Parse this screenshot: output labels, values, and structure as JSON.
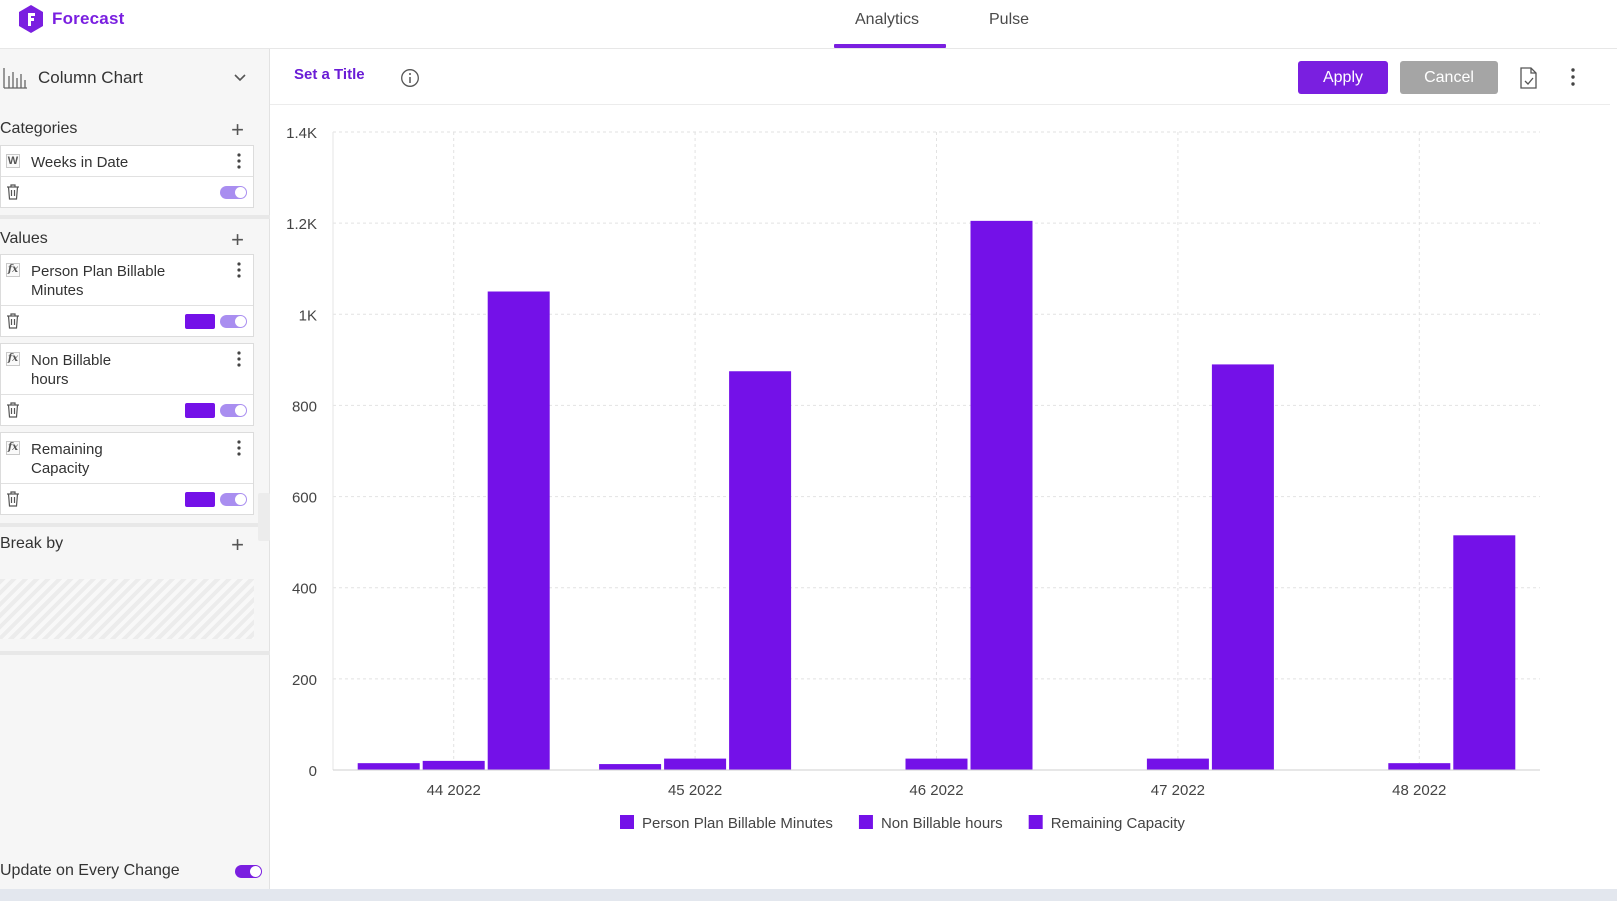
{
  "brand": {
    "name": "Forecast",
    "color": "#7a1fe0",
    "logo_icon": "forecast-logo-icon"
  },
  "nav": {
    "tabs": [
      "Analytics",
      "Pulse"
    ],
    "active": "Analytics"
  },
  "sidebar": {
    "chart_type": "Column Chart",
    "categories": {
      "title": "Categories",
      "items": [
        {
          "tag": "W",
          "label": "Weeks in Date"
        }
      ]
    },
    "values": {
      "title": "Values",
      "items": [
        {
          "tag": "fx",
          "label": "Person Plan Billable Minutes",
          "color": "#7411e8"
        },
        {
          "tag": "fx",
          "label": "Non Billable hours",
          "color": "#7411e8"
        },
        {
          "tag": "fx",
          "label": "Remaining Capacity",
          "color": "#7411e8"
        }
      ]
    },
    "break_by": {
      "title": "Break by"
    },
    "update_label": "Update on Every Change"
  },
  "toolbar": {
    "set_title": "Set a Title",
    "apply": "Apply",
    "cancel": "Cancel"
  },
  "chart_data": {
    "type": "bar",
    "categories": [
      "44 2022",
      "45 2022",
      "46 2022",
      "47 2022",
      "48 2022"
    ],
    "series": [
      {
        "name": "Person Plan Billable Minutes",
        "color": "#7411e8",
        "values": [
          15,
          13,
          0,
          0,
          0
        ]
      },
      {
        "name": "Non Billable hours",
        "color": "#7411e8",
        "values": [
          20,
          25,
          25,
          25,
          15
        ]
      },
      {
        "name": "Remaining Capacity",
        "color": "#7411e8",
        "values": [
          1050,
          875,
          1205,
          890,
          515
        ]
      }
    ],
    "ylim": [
      0,
      1400
    ],
    "yticks": [
      0,
      200,
      400,
      600,
      800,
      1000,
      1200,
      1400
    ],
    "ytick_labels": [
      "0",
      "200",
      "400",
      "600",
      "800",
      "1K",
      "1.2K",
      "1.4K"
    ],
    "grid": true,
    "legend_position": "bottom-center"
  }
}
